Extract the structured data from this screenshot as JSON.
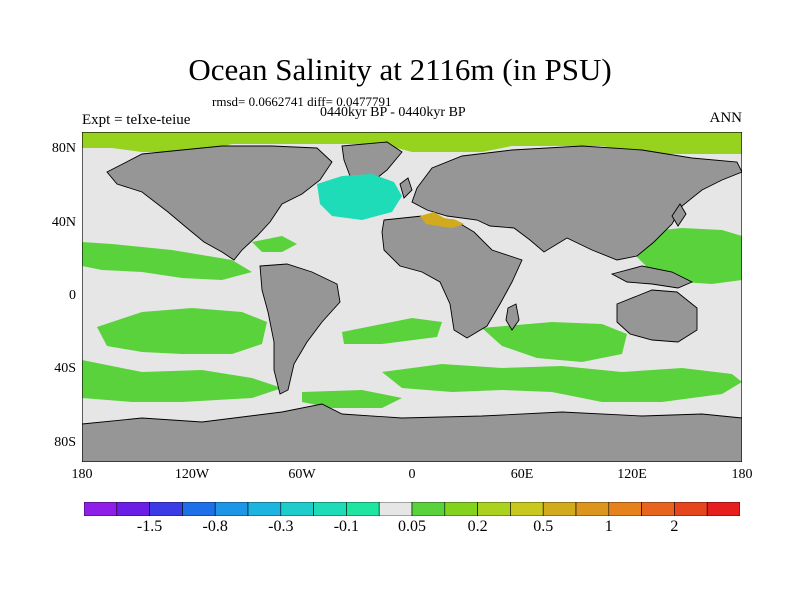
{
  "title": "Ocean Salinity at 2116m (in PSU)",
  "subtitle_stats": "rmsd= 0.0662741 diff= 0.0477791",
  "subtitle_period": "0440kyr BP - 0440kyr BP",
  "left_label": "Expt = teIxe-teiue",
  "right_label": "ANN",
  "lat_ticks": [
    {
      "label": "80N",
      "value": 80
    },
    {
      "label": "40N",
      "value": 40
    },
    {
      "label": "0",
      "value": 0
    },
    {
      "label": "40S",
      "value": -40
    },
    {
      "label": "80S",
      "value": -80
    }
  ],
  "lon_ticks": [
    {
      "label": "180",
      "value": -180
    },
    {
      "label": "120W",
      "value": -120
    },
    {
      "label": "60W",
      "value": -60
    },
    {
      "label": "0",
      "value": 0
    },
    {
      "label": "60E",
      "value": 60
    },
    {
      "label": "120E",
      "value": 120
    },
    {
      "label": "180",
      "value": 180
    }
  ],
  "colorbar": {
    "colors": [
      "#8f1ee8",
      "#6b1ee6",
      "#3c3ce6",
      "#1e6fe8",
      "#1e96e8",
      "#1eb4e0",
      "#1ecccc",
      "#1edcb8",
      "#1ee6a0",
      "#e6e6e6",
      "#5ad23c",
      "#82d21e",
      "#aad21e",
      "#c8c81e",
      "#d2aa1e",
      "#dc961e",
      "#e6821e",
      "#e6641e",
      "#e6461e",
      "#e61e1e"
    ],
    "labels": [
      {
        "text": "-1.5",
        "boundary": 2
      },
      {
        "text": "-0.8",
        "boundary": 4
      },
      {
        "text": "-0.3",
        "boundary": 6
      },
      {
        "text": "-0.1",
        "boundary": 8
      },
      {
        "text": "0.05",
        "boundary": 10
      },
      {
        "text": "0.2",
        "boundary": 12
      },
      {
        "text": "0.5",
        "boundary": 14
      },
      {
        "text": "1",
        "boundary": 16
      },
      {
        "text": "2",
        "boundary": 18
      }
    ]
  },
  "colors": {
    "land": "#969696",
    "ocean_neutral": "#e6e6e6",
    "positive": "#5ad23c",
    "arctic_positive": "#96d21e",
    "negative": "#1edcb8",
    "mediterranean": "#d2aa1e"
  }
}
